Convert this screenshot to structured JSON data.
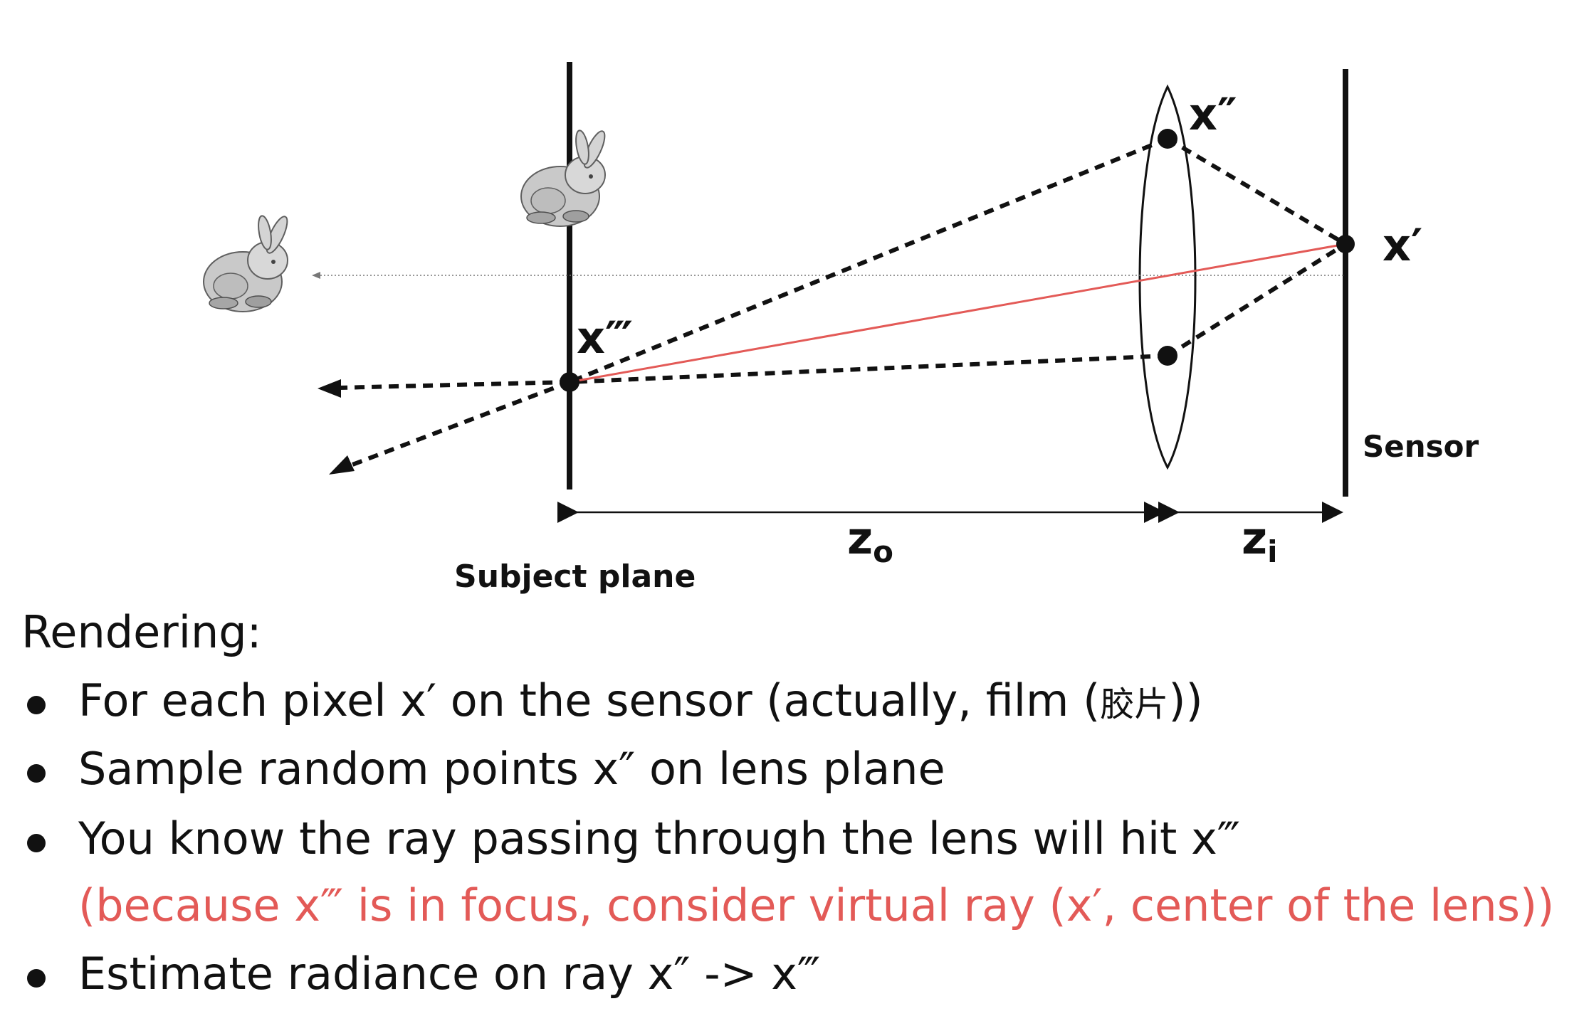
{
  "colors": {
    "ink": "#111111",
    "ray_red": "#e35a57",
    "note_red": "#e35a57",
    "background": "#ffffff"
  },
  "diagram": {
    "labels": {
      "x_double_prime": "x″",
      "x_prime": "x′",
      "x_triple_prime": "x‴",
      "sensor": "Sensor",
      "subject_plane": "Subject plane",
      "z_o": "z",
      "z_o_sub": "o",
      "z_i": "z",
      "z_i_sub": "i"
    },
    "icons": {
      "bunny_left": "stanford-bunny-icon",
      "bunny_center": "stanford-bunny-icon"
    }
  },
  "text": {
    "heading": "Rendering:",
    "bullets": [
      {
        "main": "For each pixel x′ on the sensor (actually, film (",
        "cjk": "胶片",
        "tail": "))"
      },
      {
        "main": "Sample random points x″ on lens plane"
      },
      {
        "main": "You know the ray passing through the lens will hit x‴",
        "note": "(because x‴ is in focus, consider virtual ray (x′, center of the lens))"
      },
      {
        "main": "Estimate radiance on ray x″ -> x‴"
      }
    ]
  }
}
